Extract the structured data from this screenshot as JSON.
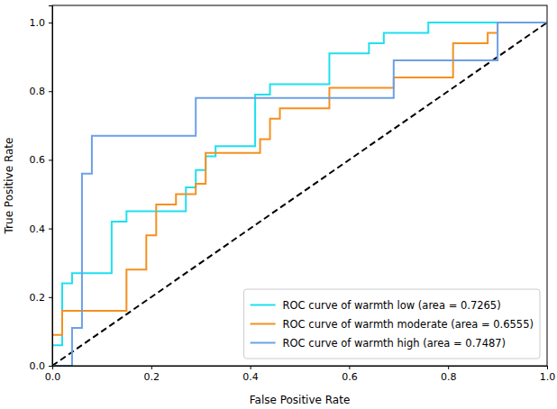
{
  "chart_data": {
    "type": "line",
    "x_label": "False Positive Rate",
    "y_label": "True Positive Rate",
    "xlim": [
      0,
      1
    ],
    "ylim": [
      0,
      1.05
    ],
    "xticks": [
      {
        "value": 0,
        "label": "0.0"
      },
      {
        "value": 0.2,
        "label": "0.2"
      },
      {
        "value": 0.4,
        "label": "0.4"
      },
      {
        "value": 0.6,
        "label": "0.6"
      },
      {
        "value": 0.8,
        "label": "0.8"
      },
      {
        "value": 1,
        "label": "1.0"
      }
    ],
    "yticks": [
      {
        "value": 0,
        "label": "0.0"
      },
      {
        "value": 0.2,
        "label": "0.2"
      },
      {
        "value": 0.4,
        "label": "0.4"
      },
      {
        "value": 0.6,
        "label": "0.6"
      },
      {
        "value": 0.8,
        "label": "0.8"
      },
      {
        "value": 1,
        "label": "1.0"
      }
    ],
    "legend": "lower right",
    "grid": false,
    "series": [
      {
        "name": "ROC curve of warmth low (area = 0.7265)",
        "color": "#1fe0f0",
        "line_style": "solid",
        "x": [
          0,
          0,
          0.02,
          0.02,
          0.04,
          0.04,
          0.12,
          0.12,
          0.15,
          0.15,
          0.27,
          0.27,
          0.29,
          0.29,
          0.31,
          0.31,
          0.33,
          0.33,
          0.41,
          0.41,
          0.44,
          0.44,
          0.56,
          0.56,
          0.64,
          0.64,
          0.67,
          0.67,
          0.76,
          0.76,
          1.0
        ],
        "values": [
          0,
          0.06,
          0.06,
          0.24,
          0.24,
          0.27,
          0.27,
          0.42,
          0.42,
          0.45,
          0.45,
          0.52,
          0.52,
          0.57,
          0.57,
          0.61,
          0.61,
          0.64,
          0.64,
          0.79,
          0.79,
          0.82,
          0.82,
          0.91,
          0.91,
          0.94,
          0.94,
          0.97,
          0.97,
          1.0,
          1.0
        ]
      },
      {
        "name": "ROC curve of warmth moderate (area = 0.6555)",
        "color": "#f5901e",
        "line_style": "solid",
        "x": [
          0,
          0,
          0.02,
          0.02,
          0.15,
          0.15,
          0.19,
          0.19,
          0.21,
          0.21,
          0.25,
          0.25,
          0.29,
          0.29,
          0.31,
          0.31,
          0.42,
          0.42,
          0.44,
          0.44,
          0.46,
          0.46,
          0.56,
          0.56,
          0.69,
          0.69,
          0.81,
          0.81,
          0.88,
          0.88,
          0.9,
          0.9,
          1.0
        ],
        "values": [
          0,
          0.09,
          0.09,
          0.16,
          0.16,
          0.28,
          0.28,
          0.38,
          0.38,
          0.47,
          0.47,
          0.5,
          0.5,
          0.53,
          0.53,
          0.62,
          0.62,
          0.66,
          0.66,
          0.72,
          0.72,
          0.75,
          0.75,
          0.81,
          0.81,
          0.84,
          0.84,
          0.94,
          0.94,
          0.97,
          0.97,
          1.0,
          1.0
        ]
      },
      {
        "name": "ROC curve of warmth high (area = 0.7487)",
        "color": "#6ca0e8",
        "line_style": "solid",
        "x": [
          0,
          0.04,
          0.04,
          0.06,
          0.06,
          0.08,
          0.08,
          0.29,
          0.29,
          0.69,
          0.69,
          0.9,
          0.9,
          1.0
        ],
        "values": [
          0,
          0,
          0.11,
          0.11,
          0.56,
          0.56,
          0.67,
          0.67,
          0.78,
          0.78,
          0.89,
          0.89,
          1.0,
          1.0
        ]
      }
    ],
    "reference_line": {
      "x": [
        0,
        1
      ],
      "values": [
        0,
        1
      ],
      "color": "#000000",
      "line_style": "dashed"
    }
  }
}
